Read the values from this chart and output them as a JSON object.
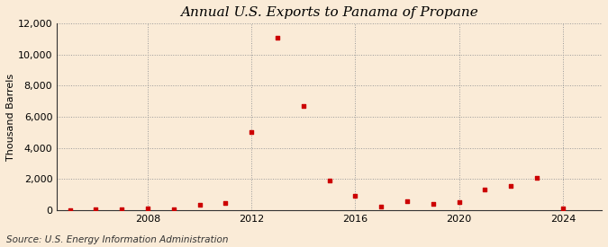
{
  "title": "Annual U.S. Exports to Panama of Propane",
  "ylabel": "Thousand Barrels",
  "source": "Source: U.S. Energy Information Administration",
  "background_color": "#faebd7",
  "years": [
    2005,
    2006,
    2007,
    2008,
    2009,
    2010,
    2011,
    2012,
    2013,
    2014,
    2015,
    2016,
    2017,
    2018,
    2019,
    2020,
    2021,
    2022,
    2023,
    2024
  ],
  "values": [
    0,
    50,
    60,
    90,
    60,
    350,
    450,
    5000,
    11100,
    6700,
    1900,
    900,
    200,
    600,
    400,
    500,
    1300,
    1550,
    2050,
    100
  ],
  "marker_color": "#cc0000",
  "ylim": [
    0,
    12000
  ],
  "xlim": [
    2004.5,
    2025.5
  ],
  "yticks": [
    0,
    2000,
    4000,
    6000,
    8000,
    10000,
    12000
  ],
  "xticks": [
    2008,
    2012,
    2016,
    2020,
    2024
  ],
  "title_fontsize": 11,
  "label_fontsize": 8,
  "tick_fontsize": 8,
  "source_fontsize": 7.5
}
